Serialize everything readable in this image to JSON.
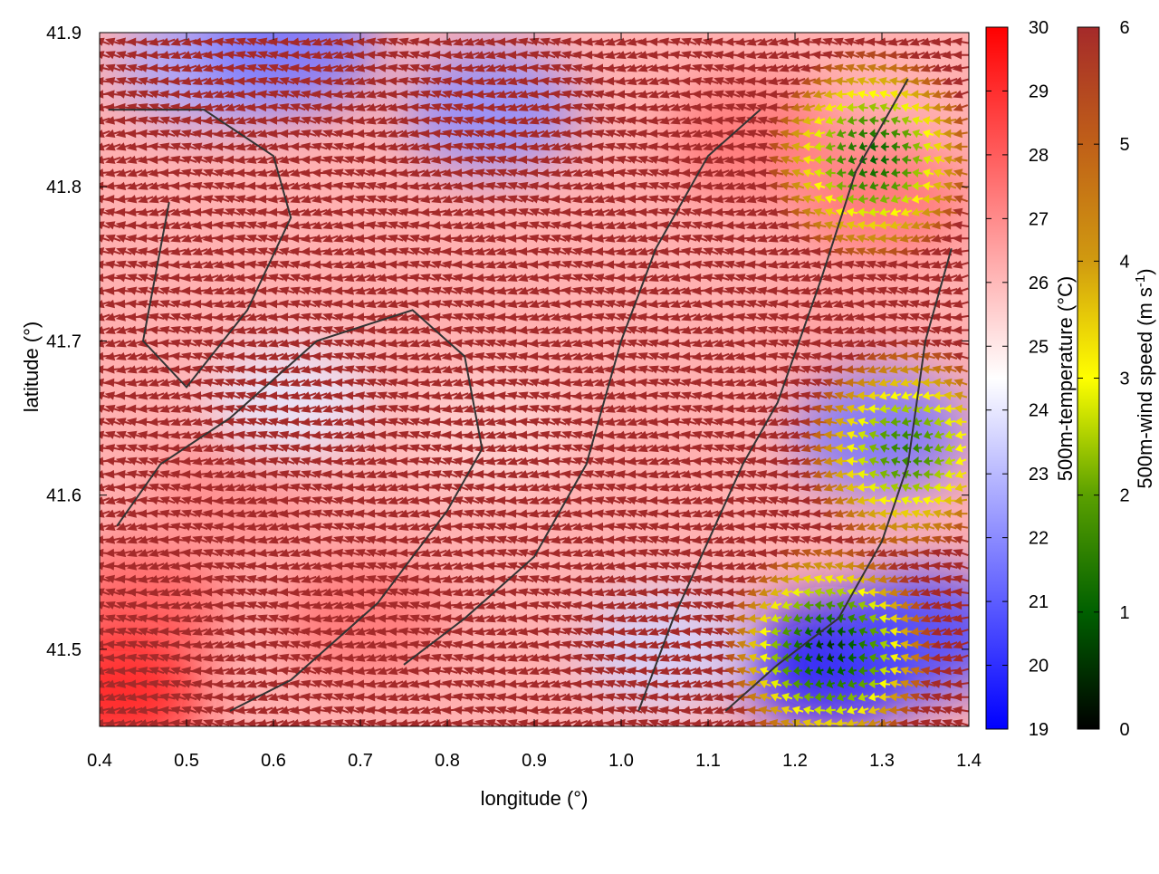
{
  "chart_data": {
    "type": "heatmap",
    "title": "",
    "xlabel": "longitude (°)",
    "ylabel": "latitude (°)",
    "xlim": [
      0.4,
      1.4
    ],
    "ylim": [
      41.45,
      41.9
    ],
    "x_ticks": [
      "0.4",
      "0.5",
      "0.6",
      "0.7",
      "0.8",
      "0.9",
      "1.0",
      "1.1",
      "1.2",
      "1.3",
      "1.4"
    ],
    "y_ticks": [
      "41.5",
      "41.6",
      "41.7",
      "41.8",
      "41.9"
    ],
    "grid": false,
    "colorbars": [
      {
        "label": "500m-temperature (°C)",
        "range": [
          19,
          30
        ],
        "ticks": [
          "19",
          "20",
          "21",
          "22",
          "23",
          "24",
          "25",
          "26",
          "27",
          "28",
          "29",
          "30"
        ],
        "colors": [
          "#0000ff",
          "#ffffff",
          "#ff0000"
        ]
      },
      {
        "label_main": "500m-wind speed (m s",
        "label_sup": "-1",
        "label_end": ")",
        "range": [
          0,
          6
        ],
        "ticks": [
          "0",
          "1",
          "2",
          "3",
          "4",
          "5",
          "6"
        ],
        "colors": [
          "#000000",
          "#006000",
          "#5aa000",
          "#ffff00",
          "#d09a10",
          "#c06018",
          "#a52a2a"
        ]
      }
    ],
    "temperature_anomalies": [
      {
        "lon": 0.45,
        "lat": 41.53,
        "value": 28.0
      },
      {
        "lon": 0.55,
        "lat": 41.6,
        "value": 27.0
      },
      {
        "lon": 0.7,
        "lat": 41.52,
        "value": 27.5
      },
      {
        "lon": 0.62,
        "lat": 41.66,
        "value": 24.0
      },
      {
        "lon": 0.85,
        "lat": 41.64,
        "value": 25.5
      },
      {
        "lon": 0.52,
        "lat": 41.88,
        "value": 22.5
      },
      {
        "lon": 0.62,
        "lat": 41.89,
        "value": 21.5
      },
      {
        "lon": 0.85,
        "lat": 41.85,
        "value": 22.0
      },
      {
        "lon": 1.15,
        "lat": 41.83,
        "value": 27.5
      },
      {
        "lon": 1.3,
        "lat": 41.79,
        "value": 27.5
      },
      {
        "lon": 1.25,
        "lat": 41.71,
        "value": 26.5
      },
      {
        "lon": 1.3,
        "lat": 41.64,
        "value": 21.5
      },
      {
        "lon": 1.24,
        "lat": 41.49,
        "value": 19.5
      },
      {
        "lon": 1.35,
        "lat": 41.51,
        "value": 20.5
      },
      {
        "lon": 1.05,
        "lat": 41.5,
        "value": 23.5
      },
      {
        "lon": 0.42,
        "lat": 41.47,
        "value": 29.5
      }
    ],
    "wind_field": {
      "dominant_direction": "westward",
      "weak_wind_regions": [
        {
          "lon": 1.24,
          "lat": 41.5,
          "speed": 0.5
        },
        {
          "lon": 1.29,
          "lat": 41.82,
          "speed": 1.0
        },
        {
          "lon": 1.33,
          "lat": 41.63,
          "speed": 1.5
        }
      ],
      "transition_zone_speed": 4
    }
  }
}
